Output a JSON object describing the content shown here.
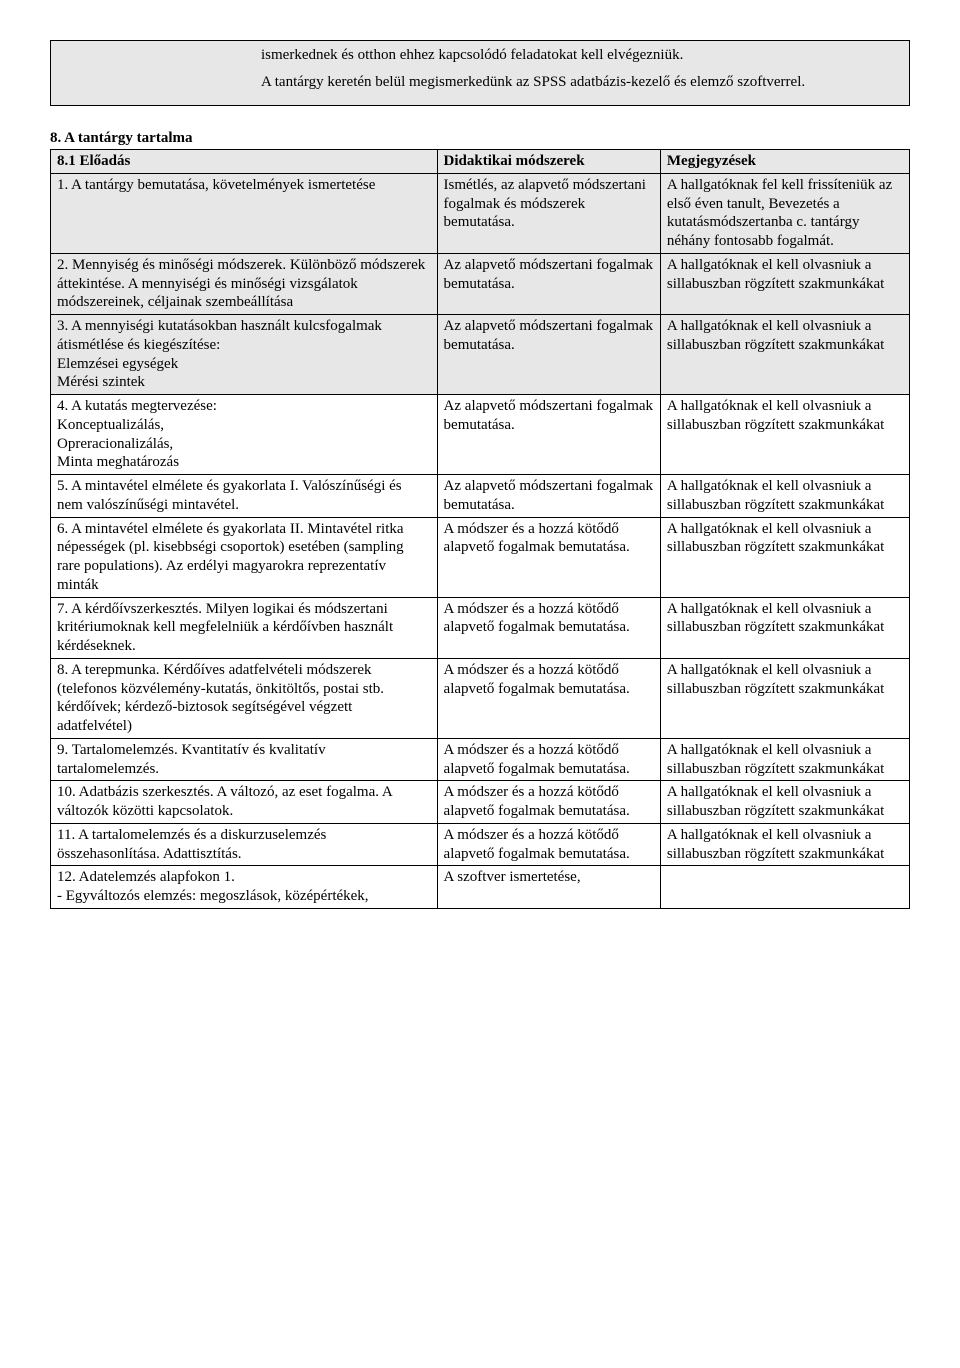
{
  "intro": {
    "p1": "ismerkednek és otthon ehhez kapcsolódó feladatokat kell elvégezniük.",
    "p2": "A tantárgy keretén belül megismerkedünk az SPSS adatbázis-kezelő és elemző szoftverrel."
  },
  "section": {
    "title": "8. A tantárgy tartalma",
    "sub": "8.1 Előadás"
  },
  "header": {
    "col1": "8.1 Előadás",
    "col2": "Didaktikai módszerek",
    "col3": "Megjegyzések"
  },
  "methods": {
    "m1": "Ismétlés, az alapvető módszertani fogalmak és módszerek bemutatása.",
    "m2": "Az alapvető módszertani fogalmak bemutatása.",
    "m3": "A módszer és a hozzá kötődő alapvető fogalmak bemutatása.",
    "m4": "A szoftver ismertetése,"
  },
  "notes": {
    "n1": "A hallgatóknak fel kell frissíteniük az első éven tanult, Bevezetés a kutatásmódszertanba c. tantárgy néhány fontosabb fogalmát.",
    "n2": "A hallgatóknak el kell olvasniuk a sillabuszban rögzített szakmunkákat"
  },
  "rows": {
    "r1": "1. A tantárgy bemutatása, követelmények ismertetése",
    "r2": "2. Mennyiség és minőségi módszerek. Különböző módszerek áttekintése. A mennyiségi és minőségi vizsgálatok módszereinek, céljainak szembeállítása",
    "r3": "3. A mennyiségi kutatásokban használt kulcsfogalmak átismétlése és kiegészítése:\nElemzései egységek\nMérési szintek",
    "r4": "4. A kutatás megtervezése:\nKonceptualizálás,\nOpreracionalizálás,\nMinta meghatározás",
    "r5": "5. A mintavétel elmélete és gyakorlata I. Valószínűségi és nem valószínűségi mintavétel.",
    "r6": "6. A mintavétel elmélete és gyakorlata II. Mintavétel ritka népességek (pl. kisebbségi csoportok) esetében (sampling rare populations). Az erdélyi magyarokra reprezentatív minták",
    "r7": "7. A kérdőívszerkesztés. Milyen logikai és módszertani kritériumoknak kell megfelelniük a kérdőívben használt kérdéseknek.",
    "r8": "8. A terepmunka. Kérdőíves adatfelvételi módszerek (telefonos közvélemény-kutatás, önkitöltős, postai stb. kérdőívek; kérdező-biztosok segítségével végzett adatfelvétel)",
    "r9": "9. Tartalomelemzés. Kvantitatív és kvalitatív tartalomelemzés.",
    "r10": "10. Adatbázis szerkesztés. A változó, az eset fogalma. A változók közötti kapcsolatok.",
    "r11": "11. A tartalomelemzés és a diskurzuselemzés összehasonlítása. Adattisztítás.",
    "r12": "12. Adatelemzés alapfokon 1.\n- Egyváltozós elemzés: megoszlások, középértékek,"
  }
}
